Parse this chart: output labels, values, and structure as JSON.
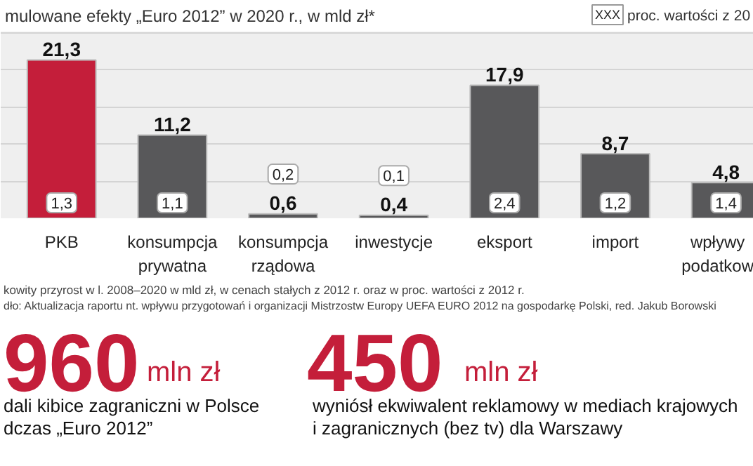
{
  "chart_data": {
    "type": "bar",
    "title": "mulowane efekty „Euro 2012” w 2020 r., w mld zł*",
    "categories": [
      "PKB",
      "konsumpcja prywatna",
      "konsumpcja rządowa",
      "inwestycje",
      "eksport",
      "import",
      "wpływy podatkow"
    ],
    "values": [
      21.3,
      11.2,
      0.6,
      0.4,
      17.9,
      8.7,
      4.8
    ],
    "colors": [
      "#c41e3a",
      "#58585a",
      "#58585a",
      "#58585a",
      "#58585a",
      "#58585a",
      "#58585a"
    ],
    "value_labels": [
      "21,3",
      "11,2",
      "0,6",
      "0,4",
      "17,9",
      "8,7",
      "4,8"
    ],
    "grid": "y",
    "annotations": [
      "XXX",
      "proc. wartości z 20",
      "kowity przyrost w l. 2008–2020 w mld zł, w cenach stałych z 2012 r. oraz w proc. wartości z 2012 r.",
      "dło: Aktualizacja raportu nt. wpływu przygotowań i organizacji Mistrzostw Europy UEFA EURO 2012 na gospodarkę Polski, red. Jakub Borowski",
      "960",
      "mln zł",
      "dali kibice zagraniczni w Polsce",
      "dczas „Euro 2012”",
      "450",
      "mln zł",
      "wyniósł ekwiwalent reklamowy w mediach krajowych",
      "i zagranicznych (bez tv) dla Warszawy",
      "1,3",
      "1,1",
      "0,2",
      "0,1",
      "2,4",
      "1,2",
      "1,4"
    ]
  }
}
